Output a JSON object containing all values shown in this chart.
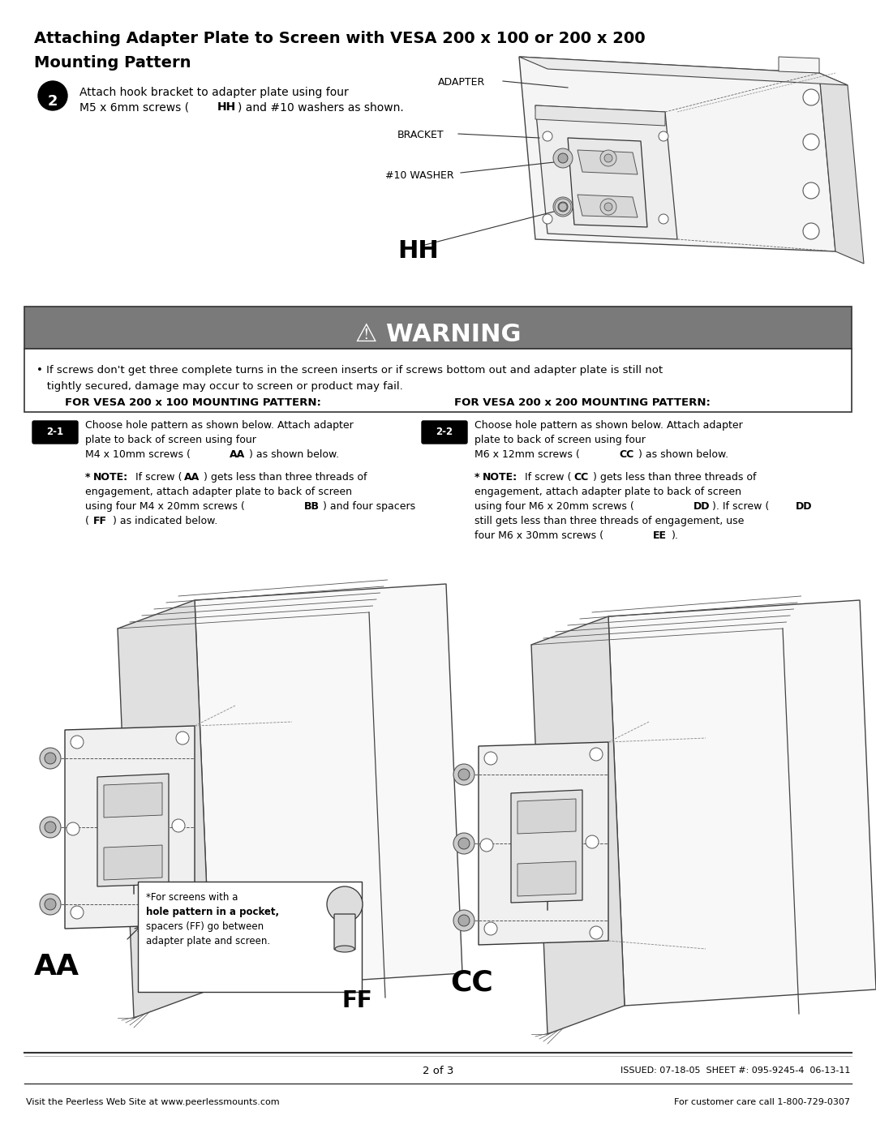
{
  "page_width": 10.8,
  "page_height": 13.97,
  "bg_color": "#ffffff",
  "title_line1": "Attaching Adapter Plate to Screen with VESA 200 x 100 or 200 x 200",
  "title_line2": "Mounting Pattern",
  "warning_title": "⚠ WARNING",
  "warning_body_1": "• If screws don't get three complete turns in the screen inserts or if screws bottom out and adapter plate is still not",
  "warning_body_2": "   tightly secured, damage may occur to screen or product may fail.",
  "vesa100_heading": "FOR VESA 200 x 100 MOUNTING PATTERN:",
  "vesa200_heading": "FOR VESA 200 x 200 MOUNTING PATTERN:",
  "label_AA": "AA",
  "label_FF": "FF",
  "label_CC": "CC",
  "pocket_note_line1": "*For screens with a",
  "pocket_note_line2": "hole pattern in a pocket,",
  "pocket_note_line3": "spacers (FF) go between",
  "pocket_note_line4": "adapter plate and screen.",
  "footer_page": "2 of 3",
  "footer_issued": "ISSUED: 07-18-05  SHEET #: 095-9245-4  06-13-11",
  "footer_website": "Visit the Peerless Web Site at www.peerlessmounts.com",
  "footer_care": "For customer care call 1-800-729-0307",
  "warn_gray": "#7a7a7a",
  "black": "#000000",
  "white": "#ffffff",
  "light_line": "#aaaaaa",
  "dark_line": "#333333"
}
